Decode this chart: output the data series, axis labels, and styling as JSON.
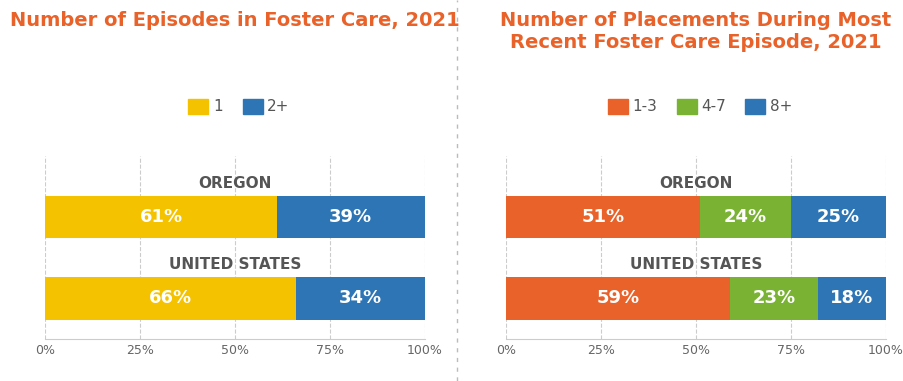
{
  "chart1": {
    "title": "Number of Episodes in Foster Care, 2021",
    "legend_labels": [
      "1",
      "2+"
    ],
    "legend_colors": [
      "#F5C200",
      "#2E75B6"
    ],
    "rows": [
      "OREGON",
      "UNITED STATES"
    ],
    "values": [
      [
        61,
        39
      ],
      [
        66,
        34
      ]
    ],
    "colors": [
      "#F5C200",
      "#2E75B6"
    ],
    "labels": [
      [
        "61%",
        "39%"
      ],
      [
        "66%",
        "34%"
      ]
    ]
  },
  "chart2": {
    "title": "Number of Placements During Most\nRecent Foster Care Episode, 2021",
    "legend_labels": [
      "1-3",
      "4-7",
      "8+"
    ],
    "legend_colors": [
      "#E8622A",
      "#7AB234",
      "#2E75B6"
    ],
    "rows": [
      "OREGON",
      "UNITED STATES"
    ],
    "values": [
      [
        51,
        24,
        25
      ],
      [
        59,
        23,
        18
      ]
    ],
    "colors": [
      "#E8622A",
      "#7AB234",
      "#2E75B6"
    ],
    "labels": [
      [
        "51%",
        "24%",
        "25%"
      ],
      [
        "59%",
        "23%",
        "18%"
      ]
    ]
  },
  "title_color": "#E8622A",
  "row_label_color": "#555555",
  "bar_text_color": "#FFFFFF",
  "tick_label_color": "#666666",
  "title_fontsize": 14,
  "row_label_fontsize": 11,
  "bar_text_fontsize": 13,
  "legend_fontsize": 11,
  "bar_height": 0.52,
  "background_color": "#FFFFFF",
  "grid_color": "#CCCCCC"
}
